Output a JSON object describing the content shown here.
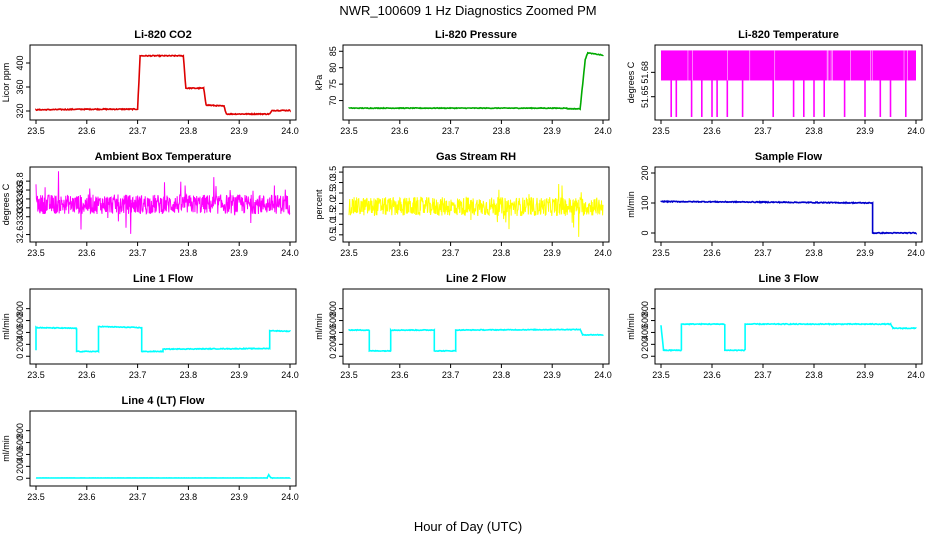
{
  "page": {
    "title": "NWR_100609  1 Hz Diagnostics Zoomed PM",
    "xlabel": "Hour of Day (UTC)"
  },
  "chart_data": [
    {
      "id": "co2",
      "type": "line",
      "title": "Li-820 CO2",
      "ylabel": "Licor ppm",
      "color": "#dd0000",
      "xlim": [
        23.5,
        24.0
      ],
      "ylim": [
        310,
        425
      ],
      "xticks": [
        "23.5",
        "23.6",
        "23.7",
        "23.8",
        "23.9",
        "24.0"
      ],
      "yticks": [
        320,
        360,
        400
      ],
      "noise": 0.8,
      "series": [
        {
          "x": [
            23.5,
            23.6,
            23.7,
            23.705,
            23.79,
            23.795,
            23.83,
            23.835,
            23.87,
            23.875,
            23.96,
            23.965,
            24.0
          ],
          "y": [
            322,
            323,
            323,
            412,
            412,
            358,
            358,
            330,
            328,
            315,
            315,
            321,
            321
          ]
        }
      ]
    },
    {
      "id": "pressure",
      "type": "line",
      "title": "Li-820 Pressure",
      "ylabel": "kPa",
      "color": "#00aa00",
      "xlim": [
        23.5,
        24.0
      ],
      "ylim": [
        65,
        86
      ],
      "xticks": [
        "23.5",
        "23.6",
        "23.7",
        "23.8",
        "23.9",
        "24.0"
      ],
      "yticks": [
        70,
        75,
        80,
        85
      ],
      "noise": 0.1,
      "series": [
        {
          "x": [
            23.5,
            23.93,
            23.93,
            23.955,
            23.965,
            23.97,
            24.0
          ],
          "y": [
            67.7,
            67.7,
            67.5,
            67.5,
            82.5,
            84.5,
            83.8
          ]
        }
      ]
    },
    {
      "id": "temp",
      "type": "band",
      "title": "Li-820 Temperature",
      "ylabel": "degrees C",
      "color": "#ff00ff",
      "xlim": [
        23.5,
        24.0
      ],
      "ylim": [
        51.625,
        51.71
      ],
      "xticks": [
        "23.5",
        "23.6",
        "23.7",
        "23.8",
        "23.9",
        "24.0"
      ],
      "yticks": [
        "51.65",
        "51.68"
      ],
      "band": [
        51.67,
        51.707
      ],
      "drops": [
        23.52,
        23.53,
        23.56,
        23.58,
        23.6,
        23.61,
        23.63,
        23.66,
        23.72,
        23.76,
        23.78,
        23.8,
        23.82,
        23.86,
        23.9,
        23.93,
        23.95,
        23.98
      ]
    },
    {
      "id": "ambient",
      "type": "noise",
      "title": "Ambient Box Temperature",
      "ylabel": "degrees C",
      "color": "#ff00ff",
      "xlim": [
        23.5,
        24.0
      ],
      "ylim": [
        32.5,
        34.05
      ],
      "xticks": [
        "23.5",
        "23.6",
        "23.7",
        "23.8",
        "23.9",
        "24.0"
      ],
      "yticks": [
        "32.6",
        "33.0",
        "33.2",
        "33.4",
        "33.6",
        "33.8"
      ],
      "center": 33.28,
      "amp": 0.22,
      "spikes": 0.6
    },
    {
      "id": "rh",
      "type": "noise",
      "title": "Gas Stream RH",
      "ylabel": "percent",
      "color": "#ffff00",
      "xlim": [
        23.5,
        24.0
      ],
      "ylim": [
        0.3,
        3.6
      ],
      "xticks": [
        "23.5",
        "23.6",
        "23.7",
        "23.8",
        "23.9",
        "24.0"
      ],
      "yticks": [
        "0.5",
        "1.0",
        "1.5",
        "2.0",
        "2.5",
        "3.0",
        "3.5"
      ],
      "center": 1.85,
      "amp": 0.45,
      "spikes": 1.2
    },
    {
      "id": "sample",
      "type": "line",
      "title": "Sample Flow",
      "ylabel": "ml/min",
      "color": "#0000cc",
      "xlim": [
        23.5,
        24.0
      ],
      "ylim": [
        -20,
        210
      ],
      "xticks": [
        "23.5",
        "23.6",
        "23.7",
        "23.8",
        "23.9",
        "24.0"
      ],
      "yticks": [
        0,
        100,
        200
      ],
      "noise": 1.5,
      "series": [
        {
          "x": [
            23.5,
            23.7,
            23.915,
            23.915,
            24.0
          ],
          "y": [
            105,
            103,
            100,
            0,
            0
          ]
        }
      ]
    },
    {
      "id": "line1",
      "type": "line",
      "title": "Line 1 Flow",
      "ylabel": "ml/min",
      "color": "#00ffff",
      "xlim": [
        23.5,
        24.0
      ],
      "ylim": [
        -80,
        1080
      ],
      "xticks": [
        "23.5",
        "23.6",
        "23.7",
        "23.8",
        "23.9",
        "24.0"
      ],
      "yticks": [
        0,
        200,
        400,
        600,
        800
      ],
      "noise": 6,
      "series": [
        {
          "x": [
            23.5,
            23.5,
            23.503,
            23.58,
            23.58,
            23.623,
            23.623,
            23.708,
            23.708,
            23.75,
            23.75,
            23.955,
            23.96,
            23.96,
            24.0
          ],
          "y": [
            100,
            490,
            480,
            470,
            80,
            80,
            500,
            480,
            80,
            80,
            120,
            130,
            130,
            430,
            420
          ]
        }
      ]
    },
    {
      "id": "line2",
      "type": "line",
      "title": "Line 2 Flow",
      "ylabel": "ml/min",
      "color": "#00ffff",
      "xlim": [
        23.5,
        24.0
      ],
      "ylim": [
        -80,
        1080
      ],
      "xticks": [
        "23.5",
        "23.6",
        "23.7",
        "23.8",
        "23.9",
        "24.0"
      ],
      "yticks": [
        0,
        200,
        400,
        600,
        800
      ],
      "noise": 6,
      "series": [
        {
          "x": [
            23.5,
            23.54,
            23.54,
            23.582,
            23.582,
            23.668,
            23.668,
            23.71,
            23.71,
            23.955,
            23.96,
            24.0
          ],
          "y": [
            440,
            440,
            90,
            90,
            440,
            440,
            90,
            90,
            440,
            450,
            360,
            360
          ]
        }
      ]
    },
    {
      "id": "line3",
      "type": "line",
      "title": "Line 3 Flow",
      "ylabel": "ml/min",
      "color": "#00ffff",
      "xlim": [
        23.5,
        24.0
      ],
      "ylim": [
        -80,
        1080
      ],
      "xticks": [
        "23.5",
        "23.6",
        "23.7",
        "23.8",
        "23.9",
        "24.0"
      ],
      "yticks": [
        0,
        200,
        400,
        600,
        800
      ],
      "noise": 7,
      "series": [
        {
          "x": [
            23.5,
            23.505,
            23.54,
            23.54,
            23.625,
            23.625,
            23.665,
            23.665,
            23.95,
            23.955,
            24.0
          ],
          "y": [
            520,
            100,
            100,
            540,
            540,
            100,
            100,
            540,
            540,
            470,
            470
          ]
        }
      ]
    },
    {
      "id": "line4",
      "type": "line",
      "title": "Line 4 (LT) Flow",
      "ylabel": "ml/min",
      "color": "#00ffff",
      "xlim": [
        23.5,
        24.0
      ],
      "ylim": [
        -80,
        1080
      ],
      "xticks": [
        "23.5",
        "23.6",
        "23.7",
        "23.8",
        "23.9",
        "24.0"
      ],
      "yticks": [
        0,
        200,
        400,
        600,
        800
      ],
      "noise": 1.5,
      "series": [
        {
          "x": [
            23.5,
            23.955,
            23.958,
            23.962,
            23.965,
            24.0
          ],
          "y": [
            5,
            5,
            60,
            10,
            5,
            5
          ]
        }
      ]
    }
  ]
}
